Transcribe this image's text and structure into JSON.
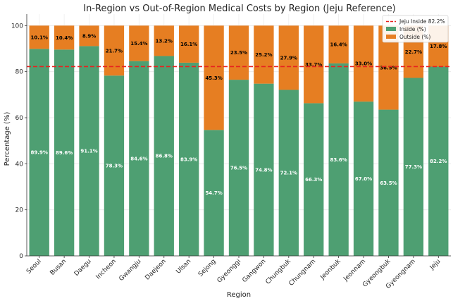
{
  "chart_data": {
    "type": "bar",
    "stacked": true,
    "title": "In-Region vs Out-of-Region Medical Costs by Region (Jeju Reference)",
    "xlabel": "Region",
    "ylabel": "Percentage (%)",
    "ylim": [
      0,
      105
    ],
    "yticks": [
      0,
      20,
      40,
      60,
      80,
      100
    ],
    "grid": true,
    "categories": [
      "Seoul",
      "Busan",
      "Daegu",
      "Incheon",
      "Gwangju",
      "Daejeon",
      "Ulsan",
      "Sejong",
      "Gyeonggi",
      "Gangwon",
      "Chungbuk",
      "Chungnam",
      "Jeonbuk",
      "Jeonnam",
      "Gyeongbuk",
      "Gyeongnam",
      "Jeju"
    ],
    "series": [
      {
        "name": "Inside (%)",
        "color": "#4e9f72",
        "values": [
          89.9,
          89.6,
          91.1,
          78.3,
          84.6,
          86.8,
          83.9,
          54.7,
          76.5,
          74.8,
          72.1,
          66.3,
          83.6,
          67.0,
          63.5,
          77.3,
          82.2
        ]
      },
      {
        "name": "Outside (%)",
        "color": "#e67e22",
        "values": [
          10.1,
          10.4,
          8.9,
          21.7,
          15.4,
          13.2,
          16.1,
          45.3,
          23.5,
          25.2,
          27.9,
          33.7,
          16.4,
          33.0,
          36.5,
          22.7,
          17.8
        ]
      }
    ],
    "reference_line": {
      "label": "Jeju Inside 82.2%",
      "value": 82.2,
      "color": "#e8231f"
    },
    "legend_position": "top-right"
  }
}
